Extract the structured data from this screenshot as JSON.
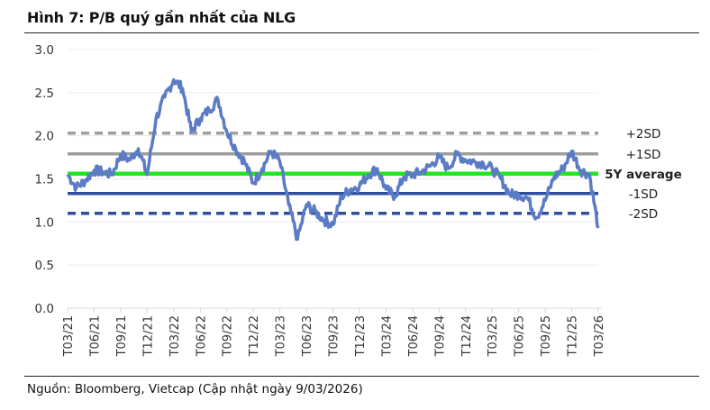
{
  "header": {
    "title": "Hình 7: P/B quý gần nhất của NLG"
  },
  "footer": {
    "source": "Nguồn: Bloomberg, Vietcap (Cập nhật ngày 9/03/2026)"
  },
  "colors": {
    "series": "#5b7bc4",
    "avg": "#22e522",
    "plus_sd": "#9e9e9e",
    "minus_sd": "#2f4f9e",
    "grid": "#ececec",
    "axis": "#d9d9d9"
  },
  "chart_data": {
    "type": "line",
    "title": "Hình 7: P/B quý gần nhất của NLG",
    "xlabel": "",
    "ylabel": "",
    "ylim": [
      0,
      3.0
    ],
    "yticks": [
      "0.0",
      "0.5",
      "1.0",
      "1.5",
      "2.0",
      "2.5",
      "3.0"
    ],
    "ytick_values": [
      0,
      0.5,
      1.0,
      1.5,
      2.0,
      2.5,
      3.0
    ],
    "grid": true,
    "x_ticks": [
      "T03/21",
      "T06/21",
      "T09/21",
      "T12/21",
      "T03/22",
      "T06/22",
      "T09/22",
      "T12/22",
      "T03/23",
      "T06/23",
      "T09/23",
      "T12/23",
      "T03/24",
      "T06/24",
      "T09/24",
      "T12/24",
      "T03/25",
      "T06/25",
      "T09/25",
      "T12/25",
      "T03/26"
    ],
    "x_range_months": [
      0,
      60
    ],
    "series": [
      {
        "name": "P/B",
        "x_months": [
          0,
          1,
          2,
          3,
          4,
          5,
          6,
          7,
          8,
          9,
          10,
          11,
          12,
          13,
          14,
          15,
          16,
          17,
          18,
          19,
          20,
          21,
          22,
          23,
          24,
          25,
          26,
          27,
          28,
          29,
          30,
          31,
          32,
          33,
          34,
          35,
          36,
          37,
          38,
          39,
          40,
          41,
          42,
          43,
          44,
          45,
          46,
          47,
          48,
          49,
          50,
          51,
          52,
          53,
          54,
          55,
          56,
          57,
          58,
          59,
          60
        ],
        "values": [
          1.55,
          1.4,
          1.48,
          1.6,
          1.58,
          1.55,
          1.78,
          1.72,
          1.85,
          1.55,
          2.2,
          2.45,
          2.65,
          2.55,
          2.05,
          2.2,
          2.3,
          2.42,
          2.05,
          1.85,
          1.7,
          1.45,
          1.62,
          1.82,
          1.7,
          1.2,
          0.8,
          1.2,
          1.12,
          1.02,
          0.97,
          1.3,
          1.38,
          1.42,
          1.55,
          1.62,
          1.38,
          1.3,
          1.52,
          1.55,
          1.58,
          1.65,
          1.75,
          1.62,
          1.78,
          1.72,
          1.7,
          1.68,
          1.62,
          1.5,
          1.32,
          1.32,
          1.28,
          1.05,
          1.25,
          1.52,
          1.62,
          1.82,
          1.6,
          1.55,
          0.93
        ]
      }
    ],
    "reference_lines": [
      {
        "name": "+2SD",
        "value": 2.03,
        "style": "dashed",
        "color": "#9e9e9e",
        "label_bold": false
      },
      {
        "name": "+1SD",
        "value": 1.79,
        "style": "solid",
        "color": "#9e9e9e",
        "label_bold": false
      },
      {
        "name": "5Y average",
        "value": 1.56,
        "style": "solid",
        "color": "#22e522",
        "label_bold": true
      },
      {
        "name": "-1SD",
        "value": 1.33,
        "style": "solid",
        "color": "#2f4f9e",
        "label_bold": false
      },
      {
        "name": "-2SD",
        "value": 1.1,
        "style": "dashed",
        "color": "#2f4f9e",
        "label_bold": false
      }
    ],
    "legend": "right"
  }
}
